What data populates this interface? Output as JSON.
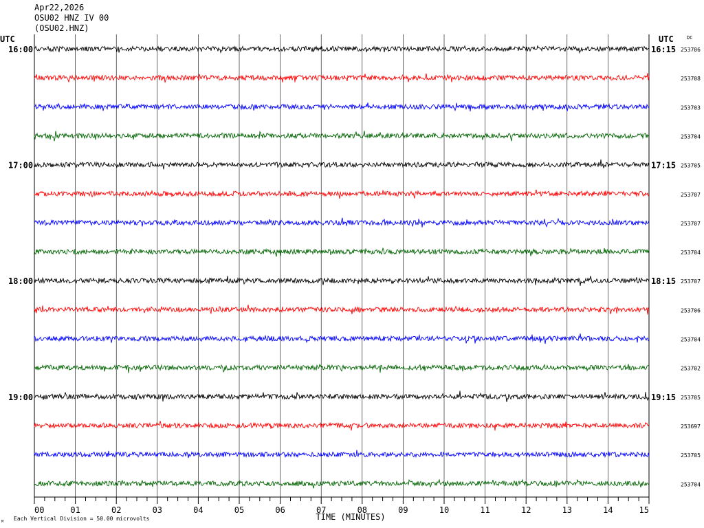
{
  "header": {
    "date": "Apr22,2026",
    "channel": "OSU02 HNZ IV 00",
    "station": "(OSU02.HNZ)"
  },
  "chart_data": {
    "type": "line",
    "xlabel": "TIME (MINUTES)",
    "x_ticks": [
      "00",
      "01",
      "02",
      "03",
      "04",
      "05",
      "06",
      "07",
      "08",
      "09",
      "10",
      "11",
      "12",
      "13",
      "14",
      "15"
    ],
    "xlim": [
      0,
      15
    ],
    "left_axis_label": "UTC",
    "right_axis_label": "UTC",
    "right_column_label": "DC",
    "trace_colors": [
      "#000000",
      "#ff0000",
      "#0000ff",
      "#006400"
    ],
    "rows": [
      {
        "left": "16:00",
        "right": "16:15",
        "dc": "253706"
      },
      {
        "left": "",
        "right": "",
        "dc": "253708"
      },
      {
        "left": "",
        "right": "",
        "dc": "253703"
      },
      {
        "left": "",
        "right": "",
        "dc": "253704"
      },
      {
        "left": "17:00",
        "right": "17:15",
        "dc": "253705"
      },
      {
        "left": "",
        "right": "",
        "dc": "253707"
      },
      {
        "left": "",
        "right": "",
        "dc": "253707"
      },
      {
        "left": "",
        "right": "",
        "dc": "253704"
      },
      {
        "left": "18:00",
        "right": "18:15",
        "dc": "253707"
      },
      {
        "left": "",
        "right": "",
        "dc": "253706"
      },
      {
        "left": "",
        "right": "",
        "dc": "253704"
      },
      {
        "left": "",
        "right": "",
        "dc": "253702"
      },
      {
        "left": "19:00",
        "right": "19:15",
        "dc": "253705"
      },
      {
        "left": "",
        "right": "",
        "dc": "253697"
      },
      {
        "left": "",
        "right": "",
        "dc": "253705"
      },
      {
        "left": "",
        "right": "",
        "dc": "253704"
      }
    ],
    "footnote": "Each Vertical Division =   50.00 microvolts",
    "corner_mark": "M"
  }
}
